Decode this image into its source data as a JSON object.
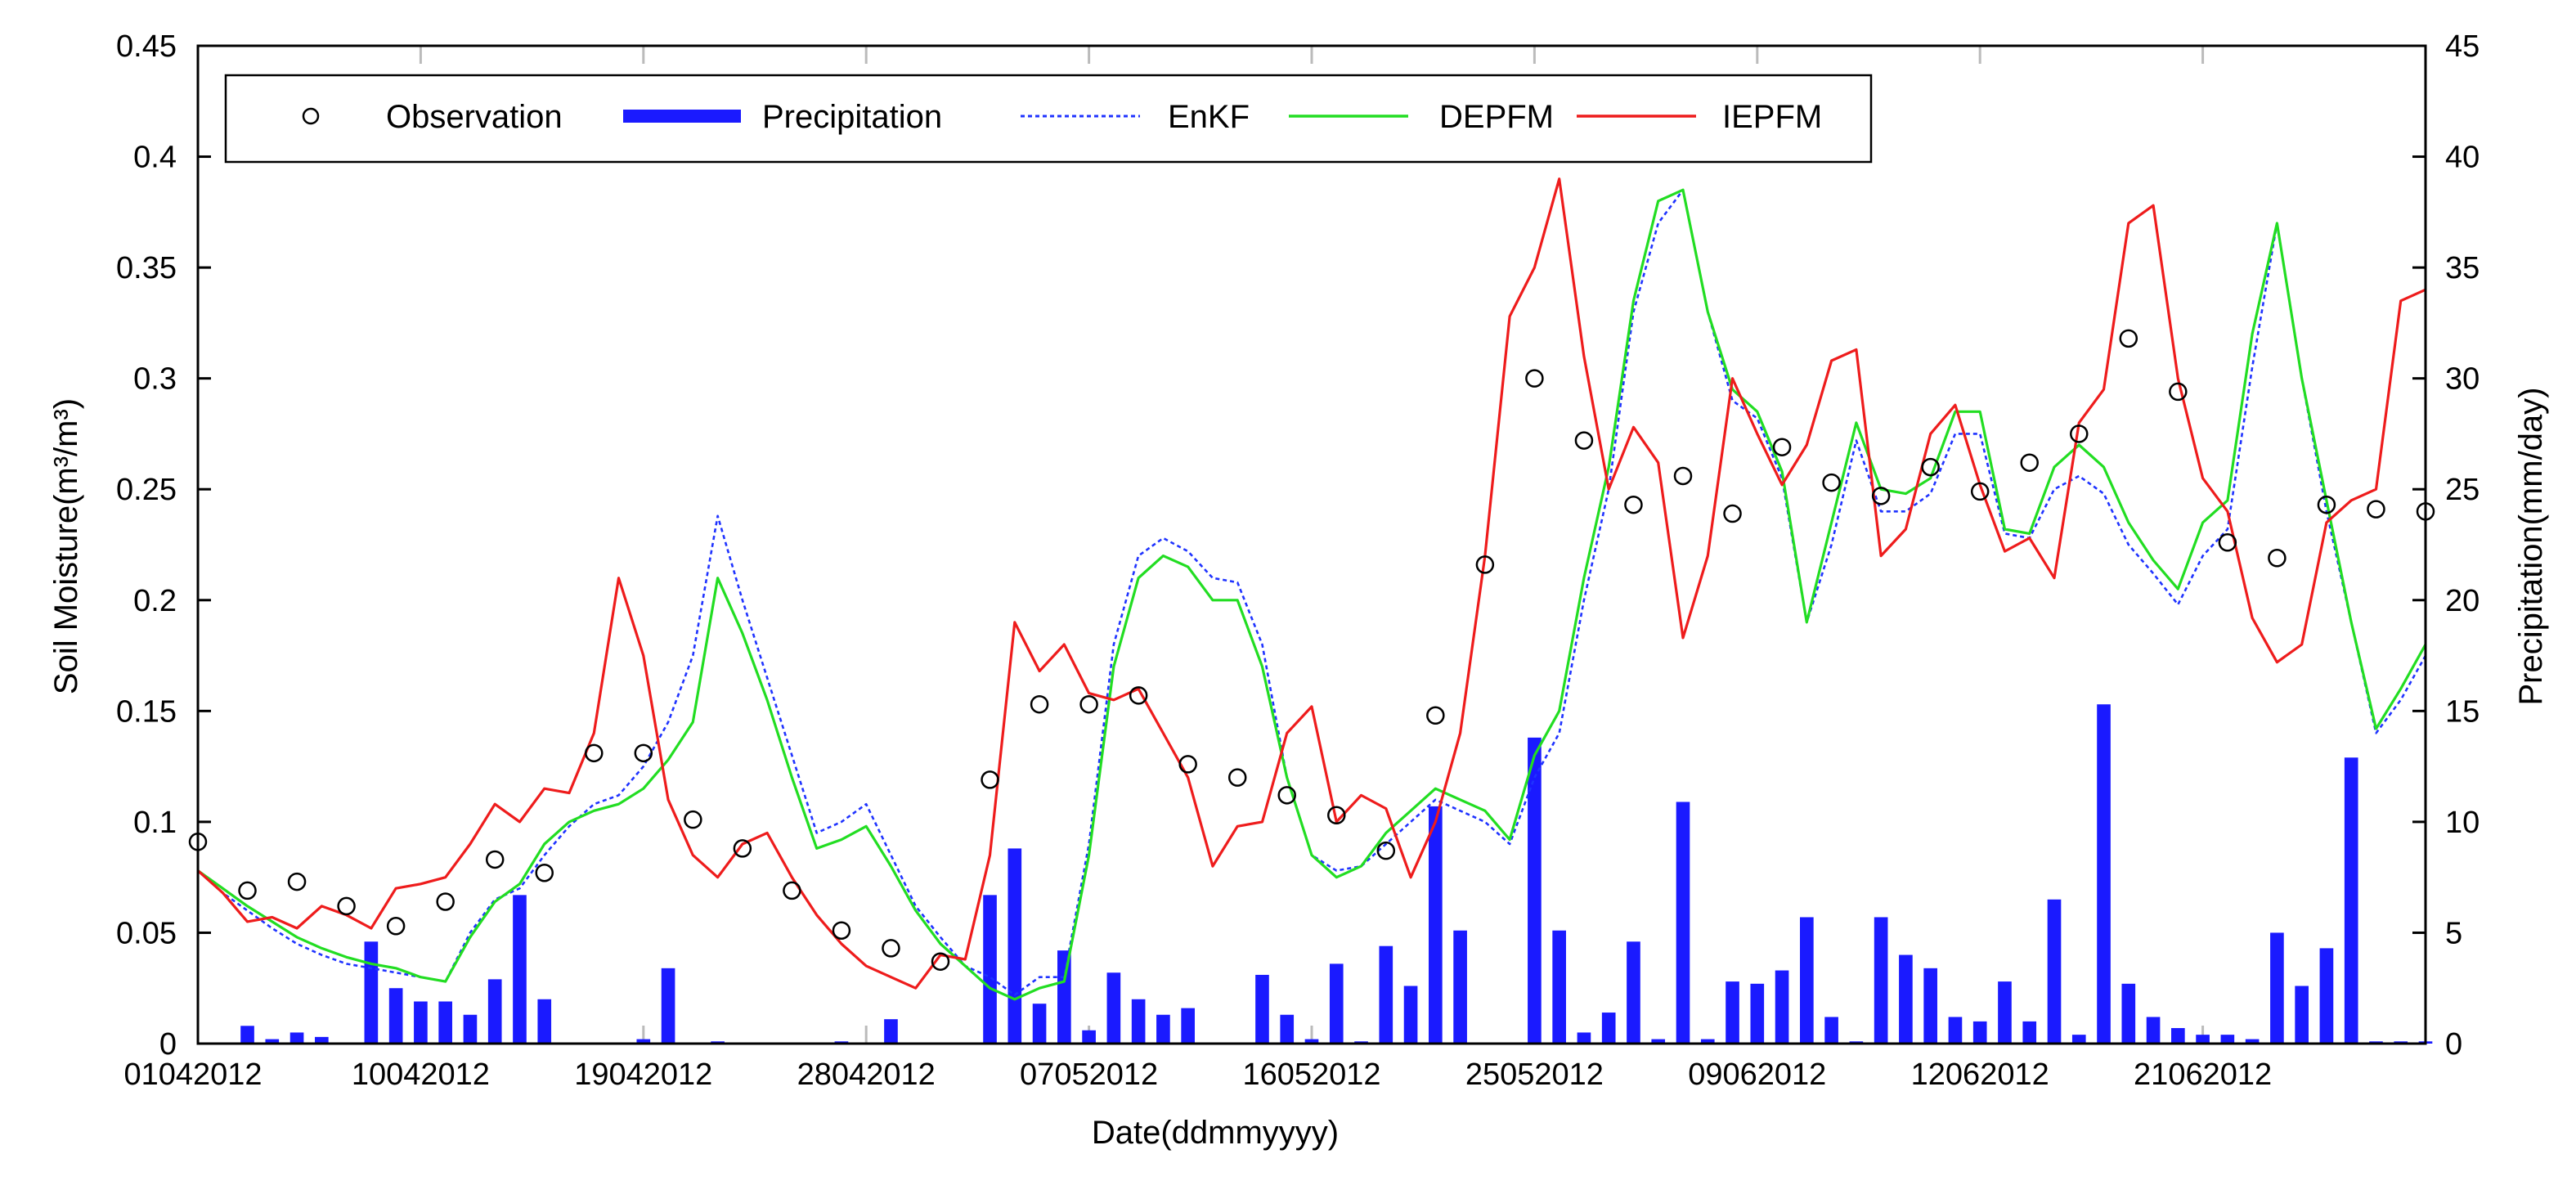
{
  "chart_data": {
    "type": "line",
    "title": "",
    "xlabel": "Date(ddmmyyyy)",
    "ylabel": "Soil Moisture(m³/m³)",
    "ylabel_right": "Precipitation(mm/day)",
    "xlim": [
      1,
      91
    ],
    "ylim": [
      0,
      0.45
    ],
    "ylim_right": [
      0,
      45
    ],
    "y_ticks": [
      "0",
      "0.05",
      "0.1",
      "0.15",
      "0.2",
      "0.25",
      "0.3",
      "0.35",
      "0.4",
      "0.45"
    ],
    "y_ticks_right": [
      "0",
      "5",
      "10",
      "15",
      "20",
      "25",
      "30",
      "35",
      "40",
      "45"
    ],
    "x_ticks": [
      {
        "x": 1,
        "label": "01042012"
      },
      {
        "x": 10,
        "label": "10042012"
      },
      {
        "x": 19,
        "label": "19042012"
      },
      {
        "x": 28,
        "label": "28042012"
      },
      {
        "x": 37,
        "label": "07052012"
      },
      {
        "x": 46,
        "label": "16052012"
      },
      {
        "x": 55,
        "label": "25052012"
      },
      {
        "x": 64,
        "label": "09062012"
      },
      {
        "x": 73,
        "label": "12062012"
      },
      {
        "x": 82,
        "label": "21062012"
      }
    ],
    "legend": [
      "Observation",
      "Precipitation",
      "EnKF",
      "DEPFM",
      "IEPFM"
    ],
    "legend_position": "top",
    "colors": {
      "observation": "#000000",
      "precipitation": "#1a1aff",
      "enkf": "#1f33ff",
      "depfm": "#22dd22",
      "iepfm": "#ee1c1c"
    },
    "observation": {
      "x": [
        1,
        3,
        5,
        7,
        9,
        11,
        13,
        15,
        17,
        19,
        21,
        23,
        25,
        27,
        29,
        31,
        33,
        35,
        37,
        39,
        41,
        43,
        45,
        47,
        49,
        51,
        53,
        55,
        57,
        59,
        61,
        63,
        65,
        67,
        69,
        71,
        73,
        75,
        77,
        79,
        81,
        83,
        85,
        87,
        89,
        91
      ],
      "y": [
        0.091,
        0.069,
        0.073,
        0.062,
        0.053,
        0.064,
        0.083,
        0.077,
        0.131,
        0.131,
        0.101,
        0.088,
        0.069,
        0.051,
        0.043,
        0.037,
        0.119,
        0.153,
        0.153,
        0.157,
        0.126,
        0.12,
        0.112,
        0.103,
        0.087,
        0.148,
        0.216,
        0.3,
        0.272,
        0.243,
        0.256,
        0.239,
        0.269,
        0.253,
        0.247,
        0.26,
        0.249,
        0.262,
        0.275,
        0.318,
        0.294,
        0.226,
        0.219,
        0.243,
        0.241,
        0.24
      ]
    },
    "precipitation": {
      "x": [
        3,
        4,
        5,
        6,
        8,
        9,
        10,
        11,
        12,
        13,
        14,
        15,
        19,
        20,
        22,
        27,
        29,
        33,
        34,
        35,
        36,
        37,
        38,
        39,
        40,
        41,
        44,
        45,
        46,
        47,
        48,
        49,
        50,
        51,
        52,
        55,
        56,
        57,
        58,
        59,
        60,
        61,
        62,
        63,
        64,
        65,
        66,
        67,
        68,
        69,
        70,
        71,
        72,
        73,
        74,
        75,
        76,
        77,
        78,
        79,
        80,
        81,
        82,
        83,
        84,
        85,
        86,
        87,
        88,
        89,
        90,
        91
      ],
      "y": [
        0.8,
        0.2,
        0.5,
        0.3,
        4.6,
        2.5,
        1.9,
        1.9,
        1.3,
        2.9,
        6.7,
        2.0,
        0.2,
        3.4,
        0.1,
        0.1,
        1.1,
        6.7,
        8.8,
        1.8,
        4.2,
        0.6,
        3.2,
        2.0,
        1.3,
        1.6,
        3.1,
        1.3,
        0.2,
        3.6,
        0.1,
        4.4,
        2.6,
        10.7,
        5.1,
        13.8,
        5.1,
        0.5,
        1.4,
        4.6,
        0.2,
        10.9,
        0.2,
        2.8,
        2.7,
        3.3,
        5.7,
        1.2,
        0.1,
        5.7,
        4.0,
        3.4,
        1.2,
        1.0,
        2.8,
        1.0,
        6.5,
        0.4,
        15.3,
        2.7,
        1.2,
        0.7,
        0.4,
        0.4,
        0.2,
        5.0,
        2.6,
        4.3,
        12.9,
        0.1,
        0.1,
        0.1
      ]
    },
    "series": [
      {
        "name": "EnKF",
        "x": [
          1,
          2,
          3,
          4,
          5,
          6,
          7,
          8,
          9,
          10,
          11,
          12,
          13,
          14,
          15,
          16,
          17,
          18,
          19,
          20,
          21,
          22,
          23,
          24,
          25,
          26,
          27,
          28,
          29,
          30,
          31,
          32,
          33,
          34,
          35,
          36,
          37,
          38,
          39,
          40,
          41,
          42,
          43,
          44,
          45,
          46,
          47,
          48,
          49,
          50,
          51,
          52,
          53,
          54,
          55,
          56,
          57,
          58,
          59,
          60,
          61,
          62,
          63,
          64,
          65,
          66,
          67,
          68,
          69,
          70,
          71,
          72,
          73,
          74,
          75,
          76,
          77,
          78,
          79,
          80,
          81,
          82,
          83,
          84,
          85,
          86,
          87,
          88,
          89,
          90,
          91
        ],
        "y": [
          0.078,
          0.068,
          0.06,
          0.052,
          0.045,
          0.04,
          0.036,
          0.034,
          0.032,
          0.03,
          0.028,
          0.05,
          0.065,
          0.07,
          0.085,
          0.098,
          0.108,
          0.112,
          0.125,
          0.145,
          0.175,
          0.238,
          0.2,
          0.165,
          0.13,
          0.095,
          0.1,
          0.108,
          0.085,
          0.062,
          0.048,
          0.035,
          0.03,
          0.022,
          0.03,
          0.03,
          0.09,
          0.18,
          0.22,
          0.228,
          0.222,
          0.21,
          0.208,
          0.18,
          0.12,
          0.085,
          0.078,
          0.08,
          0.09,
          0.1,
          0.11,
          0.105,
          0.1,
          0.09,
          0.12,
          0.14,
          0.2,
          0.25,
          0.33,
          0.37,
          0.385,
          0.33,
          0.29,
          0.282,
          0.255,
          0.19,
          0.225,
          0.272,
          0.24,
          0.24,
          0.248,
          0.275,
          0.275,
          0.23,
          0.228,
          0.25,
          0.256,
          0.248,
          0.225,
          0.212,
          0.198,
          0.22,
          0.232,
          0.305,
          0.37,
          0.3,
          0.24,
          0.19,
          0.14,
          0.155,
          0.175
        ]
      },
      {
        "name": "DEPFM",
        "x": [
          1,
          2,
          3,
          4,
          5,
          6,
          7,
          8,
          9,
          10,
          11,
          12,
          13,
          14,
          15,
          16,
          17,
          18,
          19,
          20,
          21,
          22,
          23,
          24,
          25,
          26,
          27,
          28,
          29,
          30,
          31,
          32,
          33,
          34,
          35,
          36,
          37,
          38,
          39,
          40,
          41,
          42,
          43,
          44,
          45,
          46,
          47,
          48,
          49,
          50,
          51,
          52,
          53,
          54,
          55,
          56,
          57,
          58,
          59,
          60,
          61,
          62,
          63,
          64,
          65,
          66,
          67,
          68,
          69,
          70,
          71,
          72,
          73,
          74,
          75,
          76,
          77,
          78,
          79,
          80,
          81,
          82,
          83,
          84,
          85,
          86,
          87,
          88,
          89,
          90,
          91
        ],
        "y": [
          0.078,
          0.07,
          0.062,
          0.055,
          0.048,
          0.043,
          0.039,
          0.036,
          0.034,
          0.03,
          0.028,
          0.048,
          0.064,
          0.072,
          0.09,
          0.1,
          0.105,
          0.108,
          0.115,
          0.128,
          0.145,
          0.21,
          0.185,
          0.155,
          0.12,
          0.088,
          0.092,
          0.098,
          0.08,
          0.06,
          0.045,
          0.035,
          0.025,
          0.02,
          0.025,
          0.028,
          0.085,
          0.17,
          0.21,
          0.22,
          0.215,
          0.2,
          0.2,
          0.17,
          0.12,
          0.085,
          0.075,
          0.08,
          0.095,
          0.105,
          0.115,
          0.11,
          0.105,
          0.092,
          0.13,
          0.15,
          0.21,
          0.26,
          0.335,
          0.38,
          0.385,
          0.33,
          0.295,
          0.285,
          0.258,
          0.19,
          0.235,
          0.28,
          0.25,
          0.248,
          0.255,
          0.285,
          0.285,
          0.232,
          0.23,
          0.26,
          0.27,
          0.26,
          0.235,
          0.218,
          0.205,
          0.235,
          0.245,
          0.32,
          0.37,
          0.3,
          0.245,
          0.19,
          0.142,
          0.16,
          0.18
        ]
      },
      {
        "name": "IEPFM",
        "x": [
          1,
          2,
          3,
          4,
          5,
          6,
          7,
          8,
          9,
          10,
          11,
          12,
          13,
          14,
          15,
          16,
          17,
          18,
          19,
          20,
          21,
          22,
          23,
          24,
          25,
          26,
          27,
          28,
          29,
          30,
          31,
          32,
          33,
          34,
          35,
          36,
          37,
          38,
          39,
          40,
          41,
          42,
          43,
          44,
          45,
          46,
          47,
          48,
          49,
          50,
          51,
          52,
          53,
          54,
          55,
          56,
          57,
          58,
          59,
          60,
          61,
          62,
          63,
          64,
          65,
          66,
          67,
          68,
          69,
          70,
          71,
          72,
          73,
          74,
          75,
          76,
          77,
          78,
          79,
          80,
          81,
          82,
          83,
          84,
          85,
          86,
          87,
          88,
          89,
          90,
          91
        ],
        "y": [
          0.078,
          0.068,
          0.055,
          0.057,
          0.052,
          0.062,
          0.058,
          0.052,
          0.07,
          0.072,
          0.075,
          0.09,
          0.108,
          0.1,
          0.115,
          0.113,
          0.14,
          0.21,
          0.175,
          0.11,
          0.085,
          0.075,
          0.09,
          0.095,
          0.075,
          0.058,
          0.045,
          0.035,
          0.03,
          0.025,
          0.04,
          0.038,
          0.085,
          0.19,
          0.168,
          0.18,
          0.158,
          0.155,
          0.16,
          0.14,
          0.12,
          0.08,
          0.098,
          0.1,
          0.14,
          0.152,
          0.1,
          0.112,
          0.106,
          0.075,
          0.1,
          0.14,
          0.22,
          0.328,
          0.35,
          0.39,
          0.31,
          0.25,
          0.278,
          0.262,
          0.183,
          0.22,
          0.3,
          0.275,
          0.252,
          0.27,
          0.308,
          0.313,
          0.22,
          0.232,
          0.275,
          0.288,
          0.252,
          0.222,
          0.228,
          0.21,
          0.28,
          0.295,
          0.37,
          0.378,
          0.3,
          0.255,
          0.24,
          0.192,
          0.172,
          0.18,
          0.235,
          0.245,
          0.25,
          0.335,
          0.34
        ]
      }
    ]
  }
}
